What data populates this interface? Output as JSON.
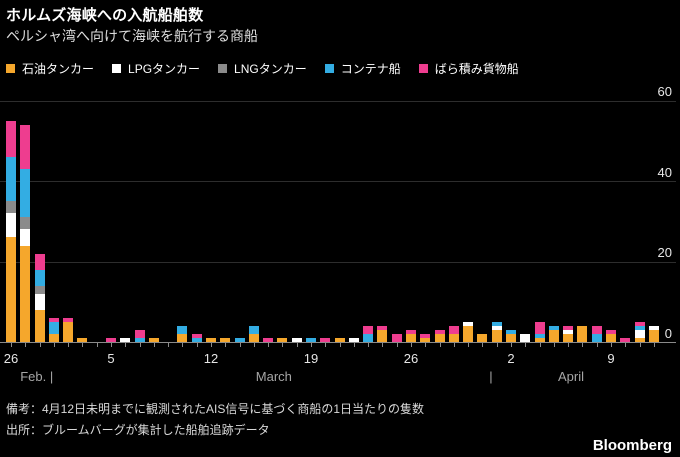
{
  "header": {
    "title": "ホルムズ海峡への入航船舶数",
    "subtitle": "ペルシャ湾へ向けて海峡を航行する商船"
  },
  "colors": {
    "background": "#000000",
    "oil": "#F5A72C",
    "lpg": "#FFFFFF",
    "lng": "#8B8B8B",
    "container": "#33ADE3",
    "bulk": "#EE3D8F",
    "gridline": "#2d2d2d",
    "axis": "#8a8a8a"
  },
  "legend": [
    {
      "name": "oil-tanker",
      "label": "石油タンカー",
      "color": "#F5A72C"
    },
    {
      "name": "lpg-tanker",
      "label": "LPGタンカー",
      "color": "#FFFFFF"
    },
    {
      "name": "lng-tanker",
      "label": "LNGタンカー",
      "color": "#8B8B8B"
    },
    {
      "name": "container-ship",
      "label": "コンテナ船",
      "color": "#33ADE3"
    },
    {
      "name": "bulk-carrier",
      "label": "ばら積み貨物船",
      "color": "#EE3D8F"
    }
  ],
  "chart_data": {
    "type": "bar",
    "stacked": true,
    "title": "ホルムズ海峡への入航船舶数",
    "subtitle": "ペルシャ湾へ向けて海峡を航行する商船",
    "xlabel": "",
    "ylabel": "",
    "ylim": [
      0,
      60
    ],
    "yticks": [
      0,
      20,
      40,
      60
    ],
    "ytick_side": "right",
    "grid": "horizontal",
    "legend_position": "top",
    "categories": [
      "Feb 26",
      "Feb 27",
      "Feb 28",
      "Mar 1",
      "Mar 2",
      "Mar 3",
      "Mar 4",
      "Mar 5",
      "Mar 6",
      "Mar 7",
      "Mar 8",
      "Mar 9",
      "Mar 10",
      "Mar 11",
      "Mar 12",
      "Mar 13",
      "Mar 14",
      "Mar 15",
      "Mar 16",
      "Mar 17",
      "Mar 18",
      "Mar 19",
      "Mar 20",
      "Mar 21",
      "Mar 22",
      "Mar 23",
      "Mar 24",
      "Mar 25",
      "Mar 26",
      "Mar 27",
      "Mar 28",
      "Mar 29",
      "Mar 30",
      "Mar 31",
      "Apr 1",
      "Apr 2",
      "Apr 3",
      "Apr 4",
      "Apr 5",
      "Apr 6",
      "Apr 7",
      "Apr 8",
      "Apr 9",
      "Apr 10",
      "Apr 11",
      "Apr 12"
    ],
    "series": [
      {
        "name": "石油タンカー",
        "color": "#F5A72C",
        "values": [
          26,
          24,
          8,
          2,
          5,
          1,
          0,
          0,
          0,
          0,
          1,
          0,
          2,
          0,
          1,
          1,
          0,
          2,
          0,
          1,
          0,
          0,
          0,
          1,
          0,
          0,
          3,
          0,
          2,
          1,
          2,
          2,
          4,
          2,
          3,
          2,
          0,
          1,
          3,
          2,
          4,
          0,
          2,
          0,
          1,
          3
        ]
      },
      {
        "name": "LPGタンカー",
        "color": "#FFFFFF",
        "values": [
          6,
          4,
          4,
          0,
          0,
          0,
          0,
          0,
          1,
          0,
          0,
          0,
          0,
          0,
          0,
          0,
          0,
          0,
          0,
          0,
          1,
          0,
          0,
          0,
          1,
          0,
          0,
          0,
          0,
          0,
          0,
          0,
          1,
          0,
          1,
          0,
          2,
          0,
          0,
          1,
          0,
          0,
          0,
          0,
          2,
          1
        ]
      },
      {
        "name": "LNGタンカー",
        "color": "#8B8B8B",
        "values": [
          3,
          3,
          2,
          0,
          0,
          0,
          0,
          0,
          0,
          0,
          0,
          0,
          0,
          0,
          0,
          0,
          0,
          0,
          0,
          0,
          0,
          0,
          0,
          0,
          0,
          0,
          0,
          0,
          0,
          0,
          0,
          0,
          0,
          0,
          0,
          0,
          0,
          0,
          0,
          0,
          0,
          0,
          0,
          0,
          0,
          0
        ]
      },
      {
        "name": "コンテナ船",
        "color": "#33ADE3",
        "values": [
          11,
          12,
          4,
          3,
          0,
          0,
          0,
          0,
          0,
          1,
          0,
          0,
          2,
          1,
          0,
          0,
          1,
          2,
          0,
          0,
          0,
          1,
          0,
          0,
          0,
          2,
          0,
          0,
          0,
          0,
          0,
          0,
          0,
          0,
          1,
          1,
          0,
          1,
          1,
          0,
          0,
          2,
          0,
          0,
          1,
          0
        ]
      },
      {
        "name": "ばら積み貨物船",
        "color": "#EE3D8F",
        "values": [
          9,
          11,
          4,
          1,
          1,
          0,
          0,
          1,
          0,
          2,
          0,
          0,
          0,
          1,
          0,
          0,
          0,
          0,
          1,
          0,
          0,
          0,
          1,
          0,
          0,
          2,
          1,
          2,
          1,
          1,
          1,
          2,
          0,
          0,
          0,
          0,
          0,
          3,
          0,
          1,
          0,
          2,
          1,
          1,
          1,
          0
        ]
      }
    ],
    "xticks": [
      {
        "index": 0,
        "label": "26"
      },
      {
        "index": 7,
        "label": "5"
      },
      {
        "index": 14,
        "label": "12"
      },
      {
        "index": 21,
        "label": "19"
      },
      {
        "index": 28,
        "label": "26"
      },
      {
        "index": 35,
        "label": "2"
      },
      {
        "index": 42,
        "label": "9"
      }
    ],
    "month_labels": [
      {
        "index": 1.8,
        "label": "Feb. |"
      },
      {
        "index": 18.4,
        "label": "March"
      },
      {
        "index": 33.6,
        "label": "|"
      },
      {
        "index": 39.2,
        "label": "April"
      }
    ]
  },
  "footer": {
    "note": "備考：4月12日未明までに観測されたAIS信号に基づく商船の1日当たりの隻数",
    "source": "出所：ブルームバーグが集計した船舶追跡データ",
    "logo": "Bloomberg"
  }
}
